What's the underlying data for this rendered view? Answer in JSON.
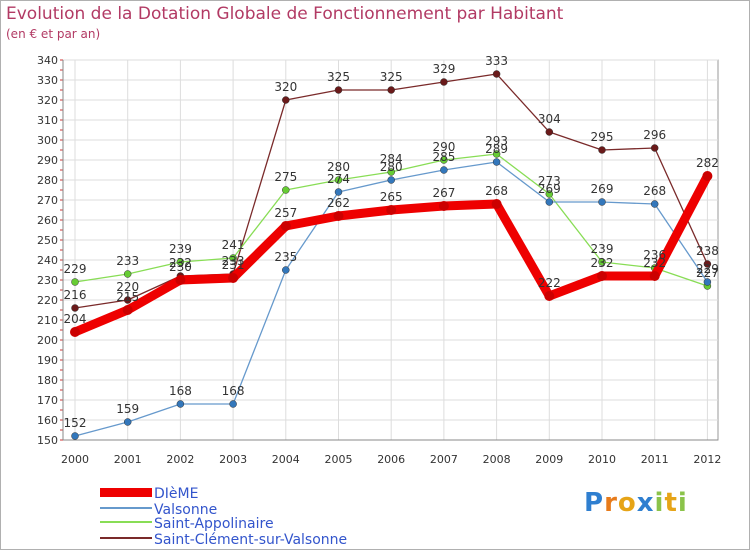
{
  "title": "Evolution de la Dotation Globale de Fonctionnement par Habitant",
  "subtitle": "(en € et par an)",
  "logo_text": "Proxiti",
  "chart_data": {
    "type": "line",
    "x": [
      "2000",
      "2001",
      "2002",
      "2003",
      "2004",
      "2005",
      "2006",
      "2007",
      "2008",
      "2009",
      "2010",
      "2011",
      "2012"
    ],
    "ylim": [
      150,
      340
    ],
    "yticks": [
      150,
      160,
      170,
      180,
      190,
      200,
      210,
      220,
      230,
      240,
      250,
      260,
      270,
      280,
      290,
      300,
      310,
      320,
      330,
      340
    ],
    "grid": true,
    "series": [
      {
        "name": "DIèME",
        "color": "#ee0000",
        "dot": "#cc0000",
        "values": [
          204,
          215,
          230,
          231,
          257,
          262,
          265,
          267,
          268,
          222,
          232,
          232,
          282
        ]
      },
      {
        "name": "Valsonne",
        "color": "#6699cc",
        "dot": "#3377bb",
        "values": [
          152,
          159,
          168,
          168,
          235,
          274,
          280,
          285,
          289,
          269,
          269,
          268,
          229
        ]
      },
      {
        "name": "Saint-Appolinaire",
        "color": "#88dd55",
        "dot": "#66cc33",
        "values": [
          229,
          233,
          239,
          241,
          275,
          280,
          284,
          290,
          293,
          273,
          239,
          236,
          227
        ]
      },
      {
        "name": "Saint-Clément-sur-Valsonne",
        "color": "#7a2a2a",
        "dot": "#6a1a1a",
        "values": [
          216,
          220,
          232,
          233,
          320,
          325,
          325,
          329,
          333,
          304,
          295,
          296,
          238
        ]
      }
    ],
    "data_labels": {
      "DIèME": [
        "204",
        "215",
        "230",
        "231",
        "257",
        "262",
        "265",
        "267",
        "268",
        "222",
        "232",
        "232",
        "282"
      ],
      "Valsonne": [
        "152",
        "159",
        "168",
        "168",
        "235",
        "274",
        "280",
        "285",
        "289",
        "269",
        "269",
        "268",
        "229"
      ],
      "Saint-Appolinaire": [
        "229",
        "233",
        "239",
        "241",
        "275",
        "280",
        "284",
        "290",
        "293",
        "273",
        "239",
        "236",
        "227"
      ],
      "Saint-Clément-sur-Valsonne": [
        "216",
        "220",
        "232",
        "233",
        "320",
        "325",
        "325",
        "329",
        "333",
        "304",
        "295",
        "296",
        "238"
      ]
    }
  },
  "legend": [
    {
      "label": "DIèME",
      "color": "#ee0000",
      "text_color": "#3355cc"
    },
    {
      "label": "Valsonne",
      "color": "#6699cc",
      "text_color": "#3355cc"
    },
    {
      "label": "Saint-Appolinaire",
      "color": "#88dd55",
      "text_color": "#3355cc"
    },
    {
      "label": "Saint-Clément-sur-Valsonne",
      "color": "#7a2a2a",
      "text_color": "#3355cc"
    }
  ]
}
